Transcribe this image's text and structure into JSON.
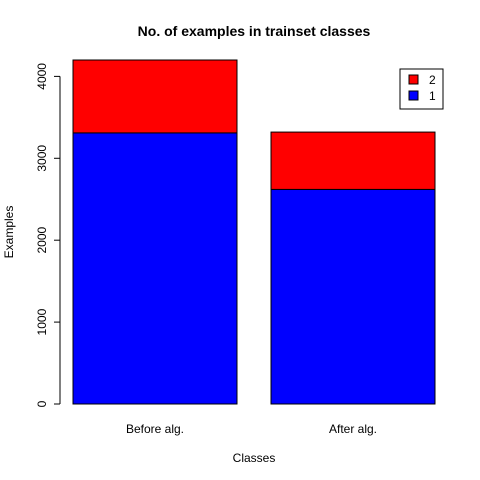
{
  "chart_data": {
    "type": "bar",
    "stacked": true,
    "title": "No. of examples in trainset classes",
    "xlabel": "Classes",
    "ylabel": "Examples",
    "categories": [
      "Before alg.",
      "After alg."
    ],
    "series": [
      {
        "name": "1",
        "values": [
          3310,
          2620
        ],
        "color": "#0000ff"
      },
      {
        "name": "2",
        "values": [
          890,
          700
        ],
        "color": "#ff0000"
      }
    ],
    "ylim": [
      0,
      4200
    ],
    "yticks": [
      0,
      1000,
      2000,
      3000,
      4000
    ],
    "legend": {
      "placement": "top-right",
      "entries": [
        "2",
        "1"
      ]
    },
    "grid": false
  }
}
